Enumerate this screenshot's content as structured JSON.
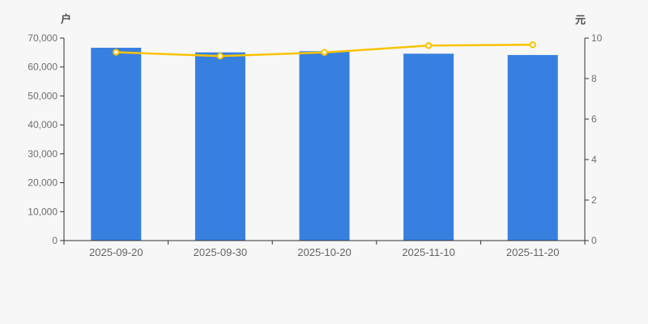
{
  "chart": {
    "background": "#f7f7f7",
    "left_unit": "户",
    "right_unit": "元"
  },
  "chart_data": {
    "type": "bar",
    "title": "",
    "categories": [
      "2025-09-20",
      "2025-09-30",
      "2025-10-20",
      "2025-11-10",
      "2025-11-20"
    ],
    "series": [
      {
        "name": "户",
        "type": "bar",
        "y_axis": "left",
        "color": "#3780e0",
        "values": [
          66650,
          65050,
          65450,
          64600,
          64150
        ]
      },
      {
        "name": "元",
        "type": "line",
        "y_axis": "right",
        "color": "#f9c303",
        "marker_fill": "#ffffff",
        "values": [
          9.3,
          9.11,
          9.29,
          9.63,
          9.67
        ]
      }
    ],
    "left_axis": {
      "unit": "户",
      "min": 0,
      "max": 70000,
      "step": 10000,
      "tick_labels": [
        "0",
        "10,000",
        "20,000",
        "30,000",
        "40,000",
        "50,000",
        "60,000",
        "70,000"
      ]
    },
    "right_axis": {
      "unit": "元",
      "min": 0,
      "max": 10,
      "step": 2,
      "tick_labels": [
        "0",
        "2",
        "4",
        "6",
        "8",
        "10"
      ]
    },
    "grid": false,
    "legend": "none",
    "axis_color": "#333333"
  }
}
